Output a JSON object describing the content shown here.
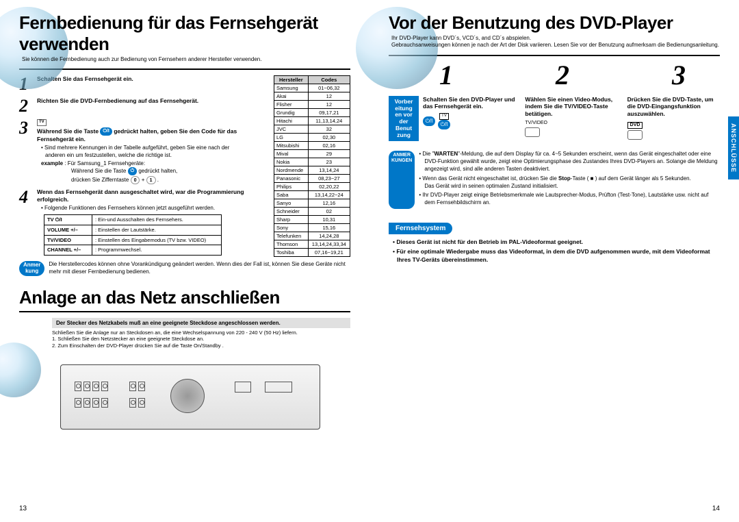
{
  "leftPage": {
    "section1": {
      "title": "Fernbedienung für das Fernsehgerät verwenden",
      "subtitle": "Sie können die Fernbedienung auch zur Bedienung von Fernsehern anderer Hersteller verwenden.",
      "step1": "Schalten Sie das Fernsehgerät ein.",
      "step2": "Richten Sie die DVD-Fernbedienung auf das Fernsehgerät.",
      "step3_a": "Während Sie die Taste ",
      "step3_b": " gedrückt halten, geben Sie den Code für das Fernsehgerät ein.",
      "step3_bul1": "• Sind mehrere Kennungen in der Tabelle aufgeführt, geben Sie eine nach der anderen ein um festzustellen, welche die richtige ist.",
      "step3_ex_lbl": "example",
      "step3_ex": " : Für Samsung_1 Fernsehgeräte:",
      "step3_ex2a": "Während Sie die Taste ",
      "step3_ex2b": " gedrückt halten,",
      "step3_ex3a": "drücken Sie Zifferntaste ",
      "step3_ex3b": " .",
      "step4": "Wenn das Fernsehgerät dann ausgeschaltet wird, war die Programmierung erfolgreich.",
      "step4_bul": "• Folgende Funktionen des Fernsehers können jetzt ausgeführt werden.",
      "funcTable": [
        [
          "TV ⏻/I",
          "Ein-und Ausschalten des Fernsehers."
        ],
        [
          "VOLUME +/–",
          "Einstellen der Lautstärke."
        ],
        [
          "TV/VIDEO",
          "Einstellen des Eingabemodus (TV bzw. VIDEO)"
        ],
        [
          "CHANNEL +/–",
          "Programmwechsel."
        ]
      ],
      "noteBadge": "Anmer\nkung",
      "noteText": "Die Herstellercodes können ohne Vorankündigung geändert werden. Wenn dies der Fall ist, können Sie diese Geräte nicht mehr mit dieser Fernbedienung bedienen.",
      "codesHeader": [
        "Hersteller",
        "Codes"
      ],
      "codes": [
        [
          "Samsung",
          "01~06,32"
        ],
        [
          "Akai",
          "12"
        ],
        [
          "Flisher",
          "12"
        ],
        [
          "Grundig",
          "09,17,21"
        ],
        [
          "Hitachi",
          "11,13,14,24"
        ],
        [
          "JVC",
          "32"
        ],
        [
          "LG",
          "02,30"
        ],
        [
          "Mitsubishi",
          "02,16"
        ],
        [
          "Mival",
          "29"
        ],
        [
          "Nokia",
          "23"
        ],
        [
          "Nordmende",
          "13,14,24"
        ],
        [
          "Panasonic",
          "08,23~27"
        ],
        [
          "Philips",
          "02,20,22"
        ],
        [
          "Saba",
          "13,14,22~24"
        ],
        [
          "Sanyo",
          "12,16"
        ],
        [
          "Schneider",
          "02"
        ],
        [
          "Sharp",
          "10,31"
        ],
        [
          "Sony",
          "15,16"
        ],
        [
          "Telefunken",
          "14,24,28"
        ],
        [
          "Thomson",
          "13,14,24,33,34"
        ],
        [
          "Toshiba",
          "07,16~19,21"
        ]
      ]
    },
    "section2": {
      "title": "Anlage an das Netz anschließen",
      "warn": "Der Stecker des Netzkabels muß an eine geeignete Steckdose angeschlossen werden.",
      "line1": "Schließen Sie die Anlage nur an Steckdosen an, die eine Wechselspannung von 220 - 240 V (50 Hz) liefern.",
      "line2": "1. Schließen Sie den Netzstecker an eine geeignete Steckdose an.",
      "line3": "2. Zum Einschalten der DVD-Player drücken Sie auf die Taste On/Standby ."
    },
    "pagenum": "13"
  },
  "rightPage": {
    "sideTab": "ANSCHLÜSSE",
    "title": "Vor der Benutzung des DVD-Player",
    "sub1": "Ihr DVD-Player kann DVD´s, VCD´s, and CD´s abspielen.",
    "sub2": "Gebrauchsanweisungen können je nach der Art der Disk variieren. Lesen Sie vor der Benutzung aufmerksam die Bedienungsanleitung.",
    "bigNums": [
      "1",
      "2",
      "3"
    ],
    "prepBadge": "Vorber\neitung\nen vor\nder\nBenut\nzung",
    "col1_title": "Schalten Sie den DVD-Player und das Fernsehgerät ein.",
    "col2_title": "Wählen Sie einen Video-Modus, indem Sie die TV/VIDEO-Taste betätigen.",
    "col2_lbl": "TV/VIDEO",
    "col3_title": "Drücken Sie die DVD-Taste, um die DVD-Eingangsfunktion auszuwählen.",
    "col3_lbl": "DVD",
    "notesBadge": "ANMER\nKUNGEN",
    "notes": [
      "• Die \"WARTEN\"-Meldung, die auf dem Display für ca. 4~5 Sekunden erscheint, wenn das Gerät eingeschaltet oder eine DVD-Funktion gewählt wurde, zeigt eine Optimierungsphase des Zustandes Ihres DVD-Players an. Solange die Meldung angezeigt wird, sind alle anderen Tasten deaktiviert.",
      "• Wenn das Gerät  nicht eingeschaltet ist, drücken Sie die Stop-Taste ( ■ )  auf dem Gerät länger als 5 Sekunden.\nDas Gerät wird in seinen optimalen Zustand initialisiert.",
      "• Ihr DVD-Player zeigt einige Betriebsmerkmale wie Lautsprecher-Modus, Prüfton (Test-Tone), Lautstärke usw. nicht auf dem Fernsehbildschirm an."
    ],
    "tvSys": {
      "header": "Fernsehsystem",
      "p1": "• Dieses Gerät ist nicht für den Betrieb im PAL-Videoformat geeignet.",
      "p2": "• Für eine optimale Wiedergabe muss das Videoformat, in dem die DVD aufgenommen wurde, mit dem Videoformat Ihres TV-Geräts übereinstimmen."
    },
    "pagenum": "14"
  },
  "colors": {
    "blue": "#0077c8",
    "gray": "#d0d0d0"
  }
}
